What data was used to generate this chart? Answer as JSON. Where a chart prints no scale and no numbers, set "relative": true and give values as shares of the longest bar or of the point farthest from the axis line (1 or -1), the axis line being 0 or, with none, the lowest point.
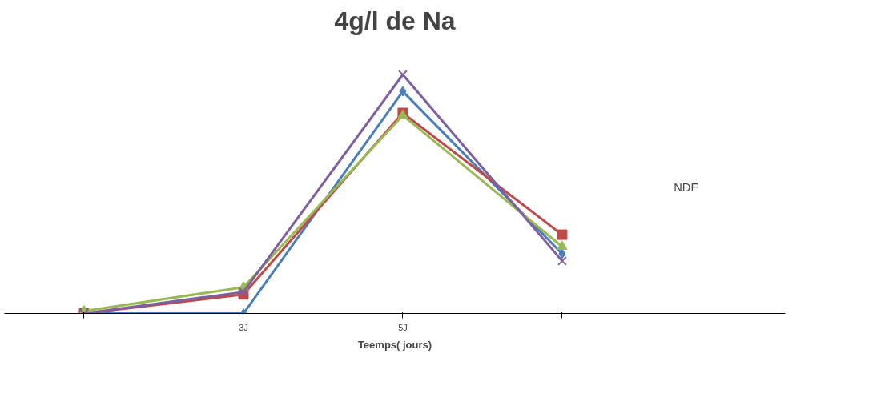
{
  "chart_data": {
    "type": "line",
    "title": "4g/l de Na",
    "xlabel": "Teemps( jours)",
    "relative": true,
    "categories": [
      null,
      "3J",
      "5J",
      null
    ],
    "series": [
      {
        "color": "#4a7ebb",
        "values": [
          0,
          0,
          0.93,
          0.25
        ],
        "marker": "diamond"
      },
      {
        "color": "#be4b48",
        "values": [
          0,
          0.08,
          0.84,
          0.33
        ],
        "marker": "square"
      },
      {
        "color": "#98b954",
        "values": [
          0.01,
          0.11,
          0.83,
          0.28
        ],
        "marker": "triangle"
      },
      {
        "color": "#7d60a0",
        "values": [
          0,
          0.09,
          1,
          0.22
        ],
        "marker": "cross"
      }
    ],
    "annotations": [
      "NDE"
    ]
  }
}
